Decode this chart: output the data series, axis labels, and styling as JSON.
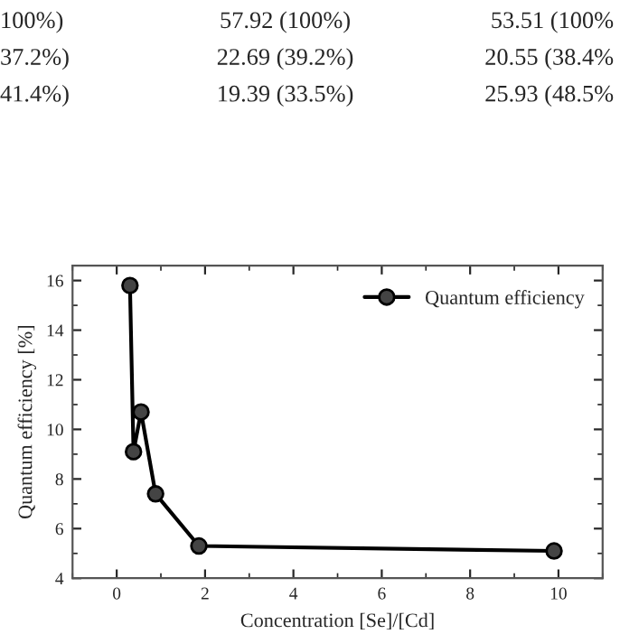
{
  "chart_data": {
    "type": "line",
    "xlabel": "Concentration [Se]/[Cd]",
    "ylabel": "Quantum efficiency [%]",
    "annotations": [
      "100%)",
      "57.92 (100%)",
      "53.51 (100%",
      "37.2%)",
      "22.69 (39.2%)",
      "20.55 (38.4%",
      "41.4%)",
      "19.39 (33.5%)",
      "25.93 (48.5%"
    ],
    "series": [
      {
        "name": "Quantum efficiency",
        "color": "#000000",
        "x": [
          0.3,
          0.38,
          0.55,
          0.88,
          1.86,
          9.9
        ],
        "values": [
          15.8,
          9.1,
          10.7,
          7.4,
          5.3,
          5.1
        ]
      }
    ],
    "xlim": [
      -1,
      11
    ],
    "xticks": [
      0,
      2,
      4,
      6,
      8,
      10
    ],
    "ylim": [
      4,
      16.6
    ],
    "yticks": [
      4,
      6,
      8,
      10,
      12,
      14,
      16
    ],
    "grid": false,
    "legend": "top right",
    "marker": "circle",
    "line_style": "solid"
  }
}
